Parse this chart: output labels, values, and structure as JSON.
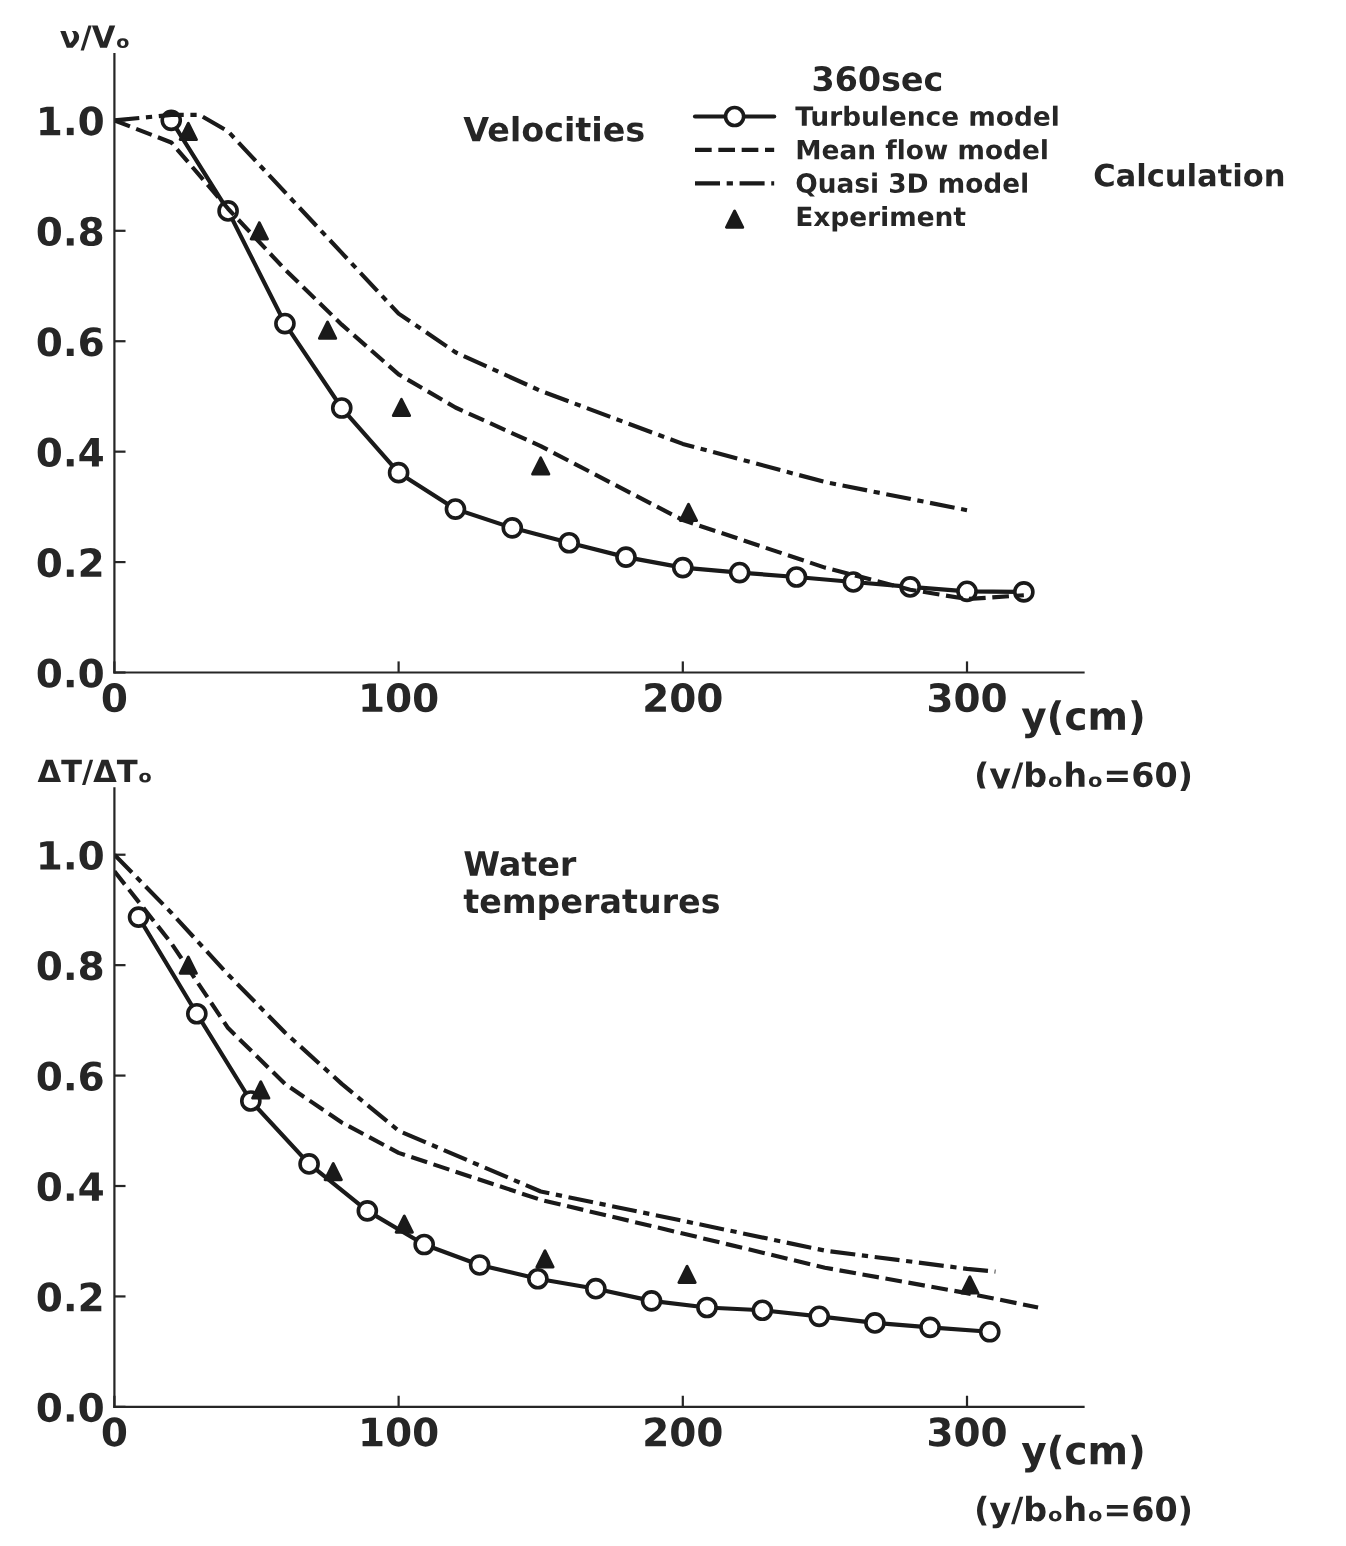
{
  "chart_data": [
    {
      "type": "line",
      "title": "Velocities",
      "ylabel": "ν/Vₒ",
      "xlabel": "y(cm)",
      "xlim": [
        0,
        341
      ],
      "xticks": [
        0,
        100,
        200,
        300
      ],
      "ylim": [
        0,
        1.12
      ],
      "yticks": [
        {
          "value": 0,
          "label": "0.0"
        },
        {
          "value": 0.2,
          "label": "0.2"
        },
        {
          "value": 0.4,
          "label": "0.4"
        },
        {
          "value": 0.6,
          "label": "0.6"
        },
        {
          "value": 0.8,
          "label": "0.8"
        },
        {
          "value": 1.0,
          "label": "1.0"
        }
      ],
      "grid": false,
      "legend": "top right",
      "legend_title": "360sec",
      "annotations": [
        "Calculation",
        "(y/bₒhₒ=60)"
      ],
      "series": [
        {
          "name": "Turbulence model",
          "color": "#1a1a1a",
          "marker": "circle",
          "line_style": "solid",
          "x": [
            20,
            40,
            60,
            80,
            100,
            120,
            140,
            160,
            180,
            200,
            220,
            240,
            260,
            280,
            300,
            320
          ],
          "values": [
            1.0,
            0.836,
            0.632,
            0.479,
            0.362,
            0.296,
            0.262,
            0.235,
            0.209,
            0.19,
            0.181,
            0.173,
            0.164,
            0.155,
            0.147,
            0.146
          ]
        },
        {
          "name": "Mean flow model",
          "color": "#1a1a1a",
          "marker": "none",
          "line_style": "dashed",
          "x": [
            0,
            20,
            40,
            60,
            80,
            100,
            120,
            150,
            200,
            250,
            280,
            300,
            320
          ],
          "values": [
            1.0,
            0.96,
            0.84,
            0.73,
            0.63,
            0.54,
            0.48,
            0.41,
            0.276,
            0.19,
            0.15,
            0.133,
            0.14
          ]
        },
        {
          "name": "Quasi 3D model",
          "color": "#1a1a1a",
          "marker": "none",
          "line_style": "dashdot",
          "x": [
            0,
            20,
            30,
            40,
            60,
            80,
            100,
            120,
            150,
            200,
            250,
            300
          ],
          "values": [
            1.0,
            1.01,
            1.01,
            0.98,
            0.87,
            0.76,
            0.65,
            0.58,
            0.51,
            0.414,
            0.345,
            0.294
          ]
        },
        {
          "name": "Experiment",
          "type": "scatter",
          "color": "#1a1a1a",
          "marker": "triangle",
          "x": [
            26,
            51,
            75,
            101,
            150,
            202
          ],
          "values": [
            0.98,
            0.8,
            0.62,
            0.48,
            0.374,
            0.29
          ]
        }
      ]
    },
    {
      "type": "line",
      "title": "Water\ntemperatures",
      "ylabel": "ΔT/ΔTₒ",
      "xlabel": "y(cm)",
      "xlim": [
        0,
        341
      ],
      "xticks": [
        0,
        100,
        200,
        300
      ],
      "ylim": [
        0,
        1.12
      ],
      "yticks": [
        {
          "value": 0,
          "label": "0.0"
        },
        {
          "value": 0.2,
          "label": "0.2"
        },
        {
          "value": 0.4,
          "label": "0.4"
        },
        {
          "value": 0.6,
          "label": "0.6"
        },
        {
          "value": 0.8,
          "label": "0.8"
        },
        {
          "value": 1.0,
          "label": "1.0"
        }
      ],
      "grid": false,
      "annotations": [
        "(y/bₒhₒ=60)"
      ],
      "series": [
        {
          "color": "#1a1a1a",
          "marker": "circle",
          "line_style": "solid",
          "x": [
            8.5,
            29,
            48,
            68.5,
            89,
            109,
            128.5,
            149,
            169.4,
            189,
            208.5,
            228,
            248,
            267.6,
            287,
            308
          ],
          "values": [
            0.887,
            0.712,
            0.554,
            0.44,
            0.355,
            0.294,
            0.257,
            0.232,
            0.214,
            0.192,
            0.18,
            0.175,
            0.164,
            0.152,
            0.144,
            0.136
          ]
        },
        {
          "color": "#1a1a1a",
          "marker": "none",
          "line_style": "dashed",
          "x": [
            0,
            20,
            40,
            60,
            80,
            100,
            150,
            200,
            250,
            300,
            325
          ],
          "values": [
            0.97,
            0.84,
            0.686,
            0.585,
            0.515,
            0.46,
            0.375,
            0.314,
            0.252,
            0.206,
            0.18
          ]
        },
        {
          "color": "#1a1a1a",
          "marker": "none",
          "line_style": "dashdot",
          "x": [
            0,
            20,
            40,
            60,
            80,
            100,
            150,
            200,
            250,
            300,
            310
          ],
          "values": [
            1.0,
            0.895,
            0.783,
            0.678,
            0.585,
            0.5,
            0.39,
            0.337,
            0.283,
            0.25,
            0.245
          ]
        },
        {
          "type": "scatter",
          "color": "#1a1a1a",
          "marker": "triangle",
          "x": [
            26,
            51.5,
            77,
            102,
            151.5,
            201.5,
            301
          ],
          "values": [
            0.8,
            0.574,
            0.426,
            0.331,
            0.268,
            0.24,
            0.221
          ]
        }
      ]
    }
  ]
}
